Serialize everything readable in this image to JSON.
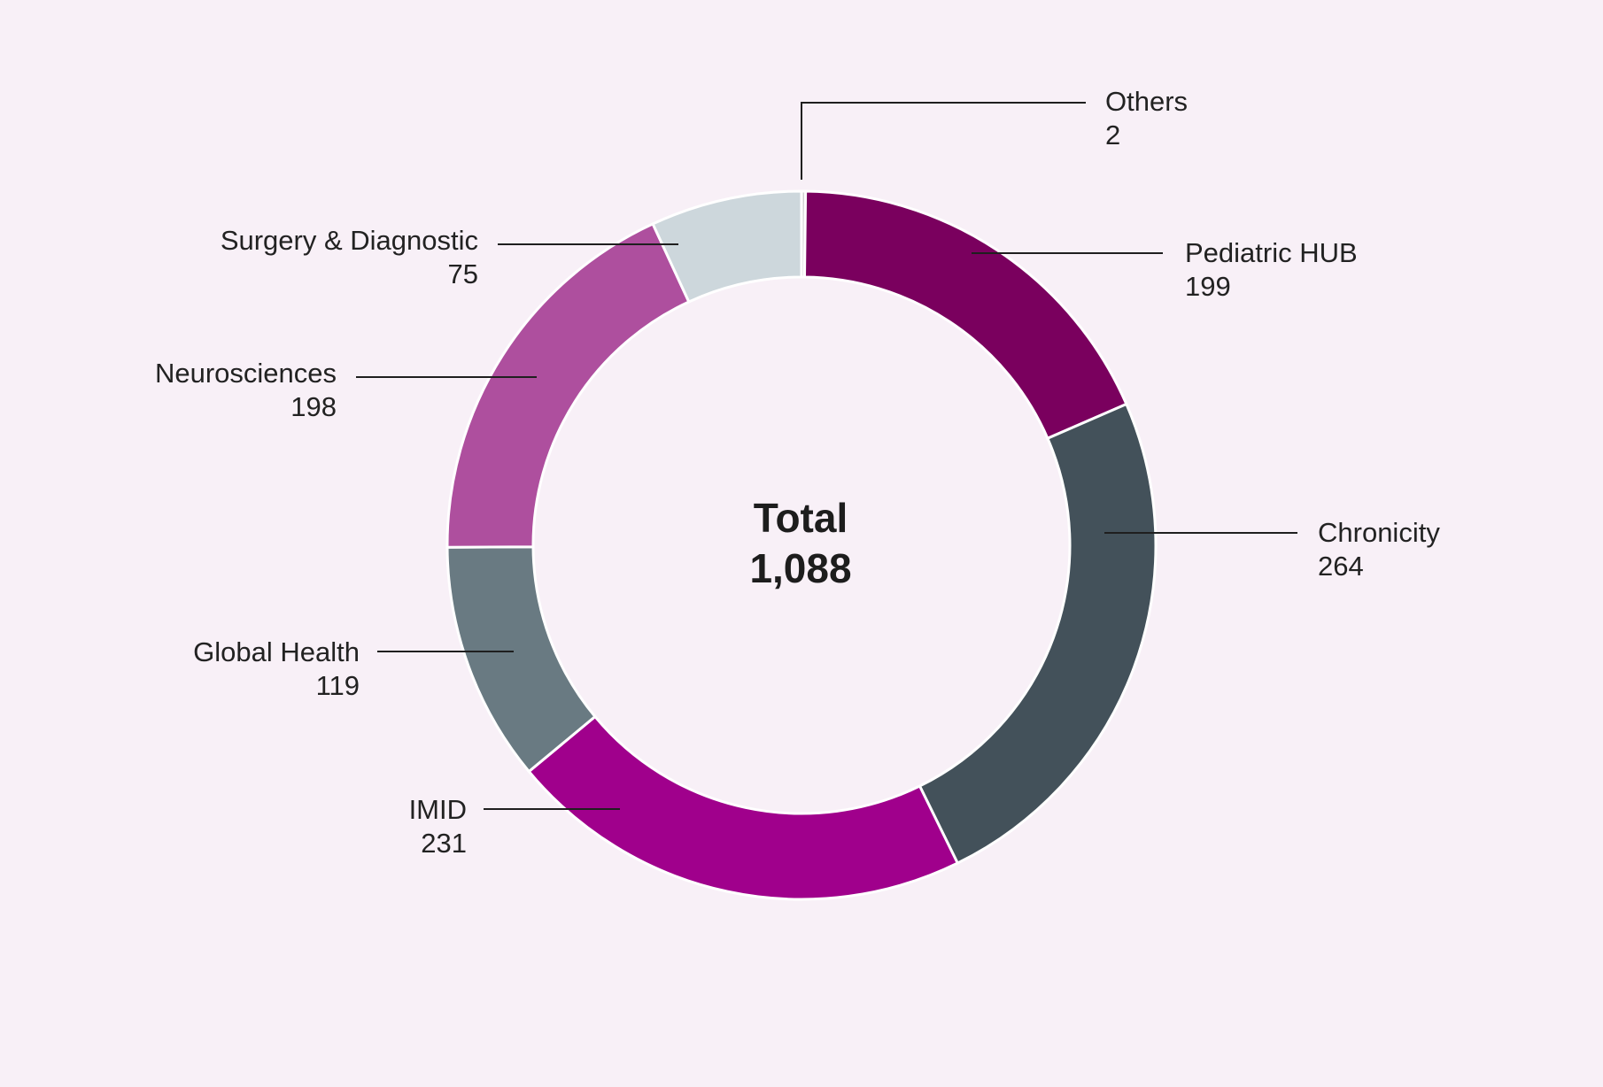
{
  "chart_data": {
    "type": "pie",
    "variant": "donut",
    "center_label": {
      "title": "Total",
      "value": "1,088"
    },
    "slices": [
      {
        "name": "Others",
        "value": 2,
        "value_label": "2",
        "color": "#d0d0d0"
      },
      {
        "name": "Pediatric HUB",
        "value": 199,
        "value_label": "199",
        "color": "#7a005e"
      },
      {
        "name": "Chronicity",
        "value": 264,
        "value_label": "264",
        "color": "#43515a"
      },
      {
        "name": "IMID",
        "value": 231,
        "value_label": "231",
        "color": "#a0008c"
      },
      {
        "name": "Global Health",
        "value": 119,
        "value_label": "119",
        "color": "#697a82"
      },
      {
        "name": "Neurosciences",
        "value": 198,
        "value_label": "198",
        "color": "#ae4f9e"
      },
      {
        "name": "Surgery & Diagnostic",
        "value": 75,
        "value_label": "75",
        "color": "#cdd7dc"
      }
    ],
    "legend": "callout labels with leader lines"
  }
}
